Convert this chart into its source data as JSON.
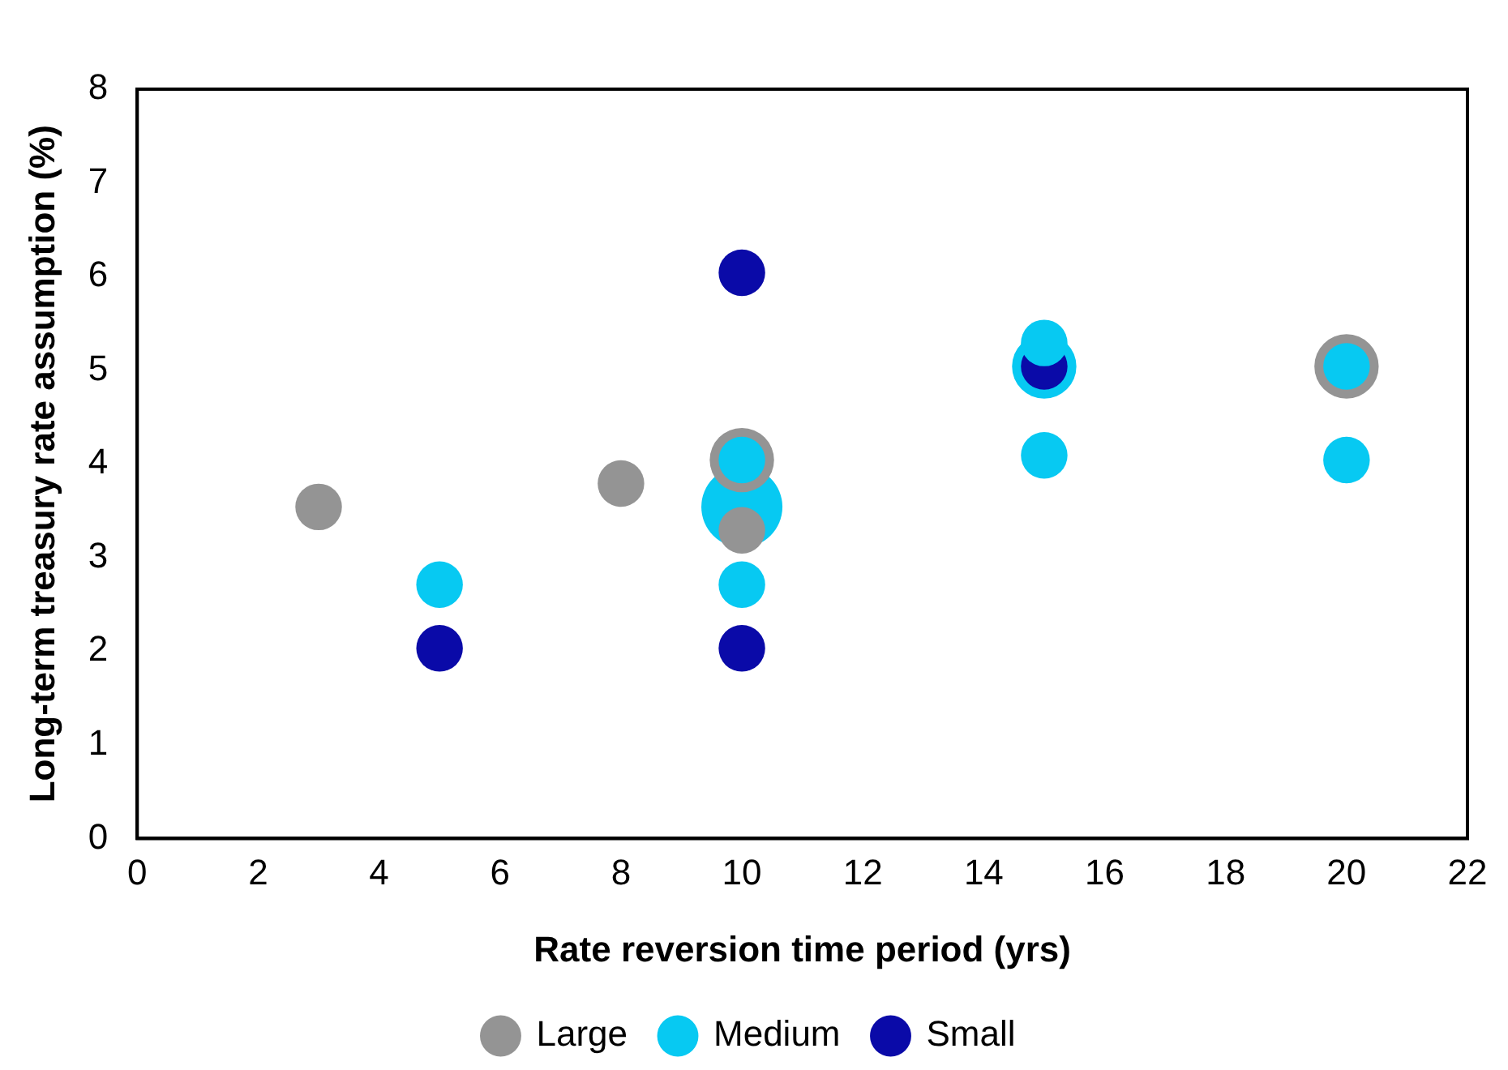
{
  "chart_data": {
    "type": "bubble",
    "xlabel": "Rate reversion time period (yrs)",
    "ylabel": "Long-term treasury rate assumption (%)",
    "xlim": [
      0,
      22
    ],
    "xticks": [
      0,
      2,
      4,
      6,
      8,
      10,
      12,
      14,
      16,
      18,
      20,
      22
    ],
    "ylim": [
      0,
      8
    ],
    "yticks": [
      0,
      1,
      2,
      3,
      4,
      5,
      6,
      7,
      8
    ],
    "grid": false,
    "legend": "bottom",
    "series": [
      {
        "name": "Large",
        "color": "#949494",
        "x": [
          3,
          8,
          10,
          10,
          20
        ],
        "values": [
          3.54,
          3.79,
          4.04,
          3.29,
          5.04
        ],
        "sizes": [
          0.33,
          0.33,
          0.63,
          0.33,
          0.63
        ]
      },
      {
        "name": "Medium",
        "color": "#07c9f2",
        "x": [
          5,
          10,
          10,
          10,
          15,
          15,
          15,
          20,
          20
        ],
        "values": [
          2.71,
          4.04,
          3.54,
          2.71,
          5.29,
          5.04,
          4.09,
          5.04,
          4.04
        ],
        "sizes": [
          0.33,
          0.33,
          1,
          0.33,
          0.33,
          0.63,
          0.33,
          0.33,
          0.33
        ]
      },
      {
        "name": "Small",
        "color": "#0a0aa8",
        "x": [
          5,
          10,
          10,
          15
        ],
        "values": [
          2.03,
          6.04,
          2.03,
          5.04
        ],
        "sizes": [
          0.33,
          0.33,
          0.33,
          0.33
        ]
      }
    ]
  }
}
